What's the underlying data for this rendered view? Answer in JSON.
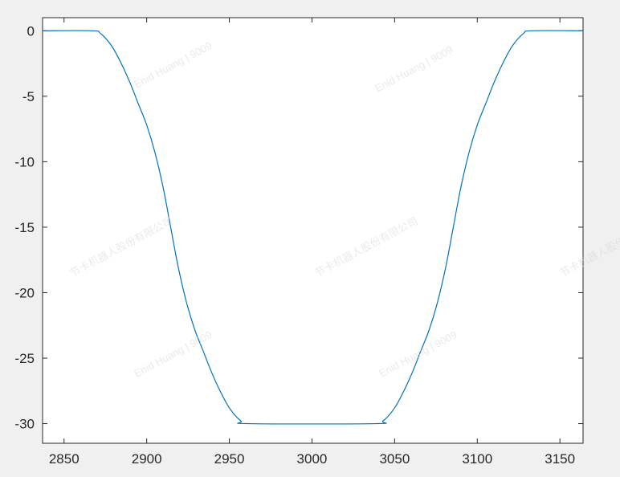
{
  "chart_data": {
    "type": "line",
    "title": "",
    "xlabel": "",
    "ylabel": "",
    "xlim": [
      2837,
      3164
    ],
    "ylim": [
      -31.5,
      1
    ],
    "xticks": [
      2850,
      2900,
      2950,
      3000,
      3050,
      3100,
      3150
    ],
    "yticks": [
      0,
      -5,
      -10,
      -15,
      -20,
      -25,
      -30
    ],
    "grid": false,
    "line_color": "#0072bd",
    "series": [
      {
        "x": [
          2837,
          2867,
          2872,
          2879,
          2885,
          2890,
          2895,
          2900,
          2905,
          2910,
          2914.5,
          2919,
          2924,
          2929,
          2934,
          2939,
          2944,
          2950,
          2957,
          2962,
          3038,
          3043,
          3050,
          3056,
          3061,
          3066,
          3071,
          3076,
          3081,
          3085.5,
          3090,
          3095,
          3100,
          3105,
          3110,
          3115,
          3121,
          3128,
          3133,
          3164
        ],
        "y": [
          0,
          0,
          -0.2,
          -1.2,
          -2.6,
          -4,
          -5.6,
          -7.2,
          -9.3,
          -12,
          -15,
          -18,
          -20.7,
          -22.8,
          -24.4,
          -26,
          -27.4,
          -28.8,
          -29.8,
          -30,
          -30,
          -29.8,
          -28.8,
          -27.4,
          -26,
          -24.4,
          -22.8,
          -20.7,
          -18,
          -15,
          -12,
          -9.3,
          -7.2,
          -5.6,
          -4,
          -2.6,
          -1.2,
          -0.2,
          0,
          0
        ]
      }
    ]
  },
  "watermarks": [
    "Enid Huang | 9009",
    "节卡机器人股份有限公司"
  ]
}
